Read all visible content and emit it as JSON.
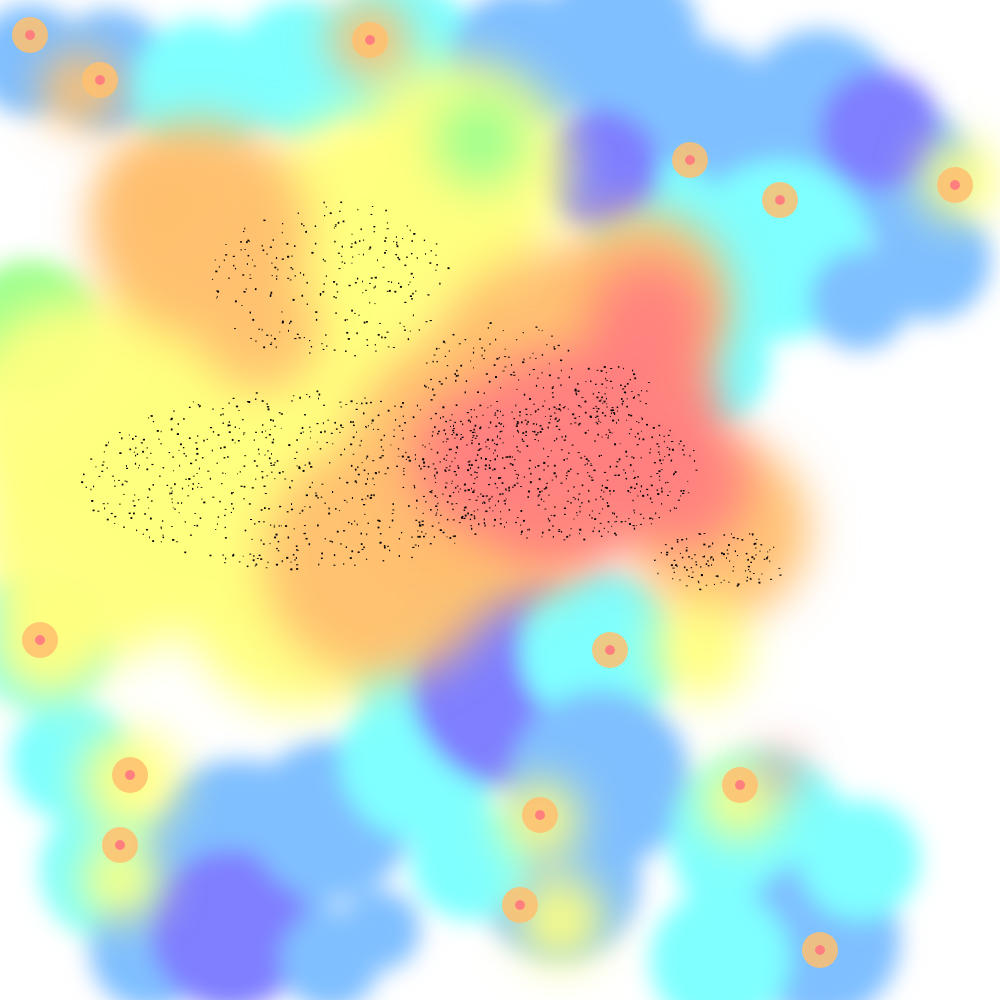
{
  "map": {
    "kind": "coverage-heatmap",
    "background_color": "#ffffff",
    "legend_shown": false,
    "labels_shown": false,
    "palette": {
      "very_low": "#7f7fff",
      "low": "#7fbfff",
      "medium_low": "#7fffff",
      "medium": "#9fff8f",
      "medium_high": "#ffff7f",
      "high": "#ffbf6f",
      "very_high": "#ff7f7f",
      "point_markers": "#000000"
    }
  }
}
